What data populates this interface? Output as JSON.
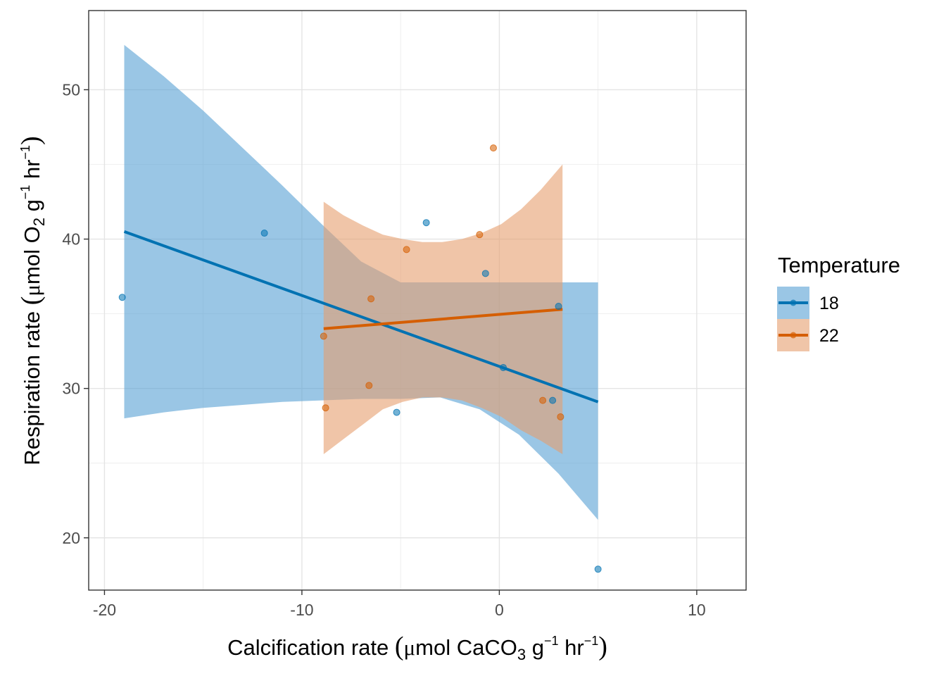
{
  "chart_data": {
    "type": "scatter",
    "xlabel": {
      "pre": "Calcification rate ",
      "paren_open": "(",
      "mu": "μ",
      "main": "mol CaCO",
      "sub": "3",
      "unit1": " g",
      "sup1": "−1",
      "unit2": " hr",
      "sup2": "−1",
      "paren_close": ")"
    },
    "ylabel": {
      "pre": "Respiration rate ",
      "paren_open": "(",
      "mu": "μ",
      "main": "mol O",
      "sub": "2",
      "unit1": " g",
      "sup1": "−1",
      "unit2": " hr",
      "sup2": "−1",
      "paren_close": ")"
    },
    "xlim": [
      -20.8,
      12.5
    ],
    "ylim": [
      16.5,
      55.3
    ],
    "x_ticks": [
      -20,
      -10,
      0,
      10
    ],
    "x_tick_labels": [
      "-20",
      "-10",
      "0",
      "10"
    ],
    "y_ticks": [
      20,
      30,
      40,
      50
    ],
    "y_tick_labels": [
      "20",
      "30",
      "40",
      "50"
    ],
    "x_minor": [
      -15,
      -5,
      5
    ],
    "y_minor": [
      25,
      35,
      45
    ],
    "grid": true,
    "legend": {
      "title": "Temperature",
      "position": "right"
    },
    "series": [
      {
        "name": "18",
        "color": "#0072B2",
        "ribbon_color": "#56A0D3",
        "points": [
          {
            "x": -19.1,
            "y": 36.1
          },
          {
            "x": -11.9,
            "y": 40.4
          },
          {
            "x": -3.7,
            "y": 41.1
          },
          {
            "x": -5.2,
            "y": 28.4
          },
          {
            "x": -0.7,
            "y": 37.7
          },
          {
            "x": 0.2,
            "y": 31.4
          },
          {
            "x": 2.7,
            "y": 29.2
          },
          {
            "x": 3.0,
            "y": 35.5
          },
          {
            "x": 5.0,
            "y": 17.9
          }
        ],
        "line": [
          {
            "x": -19.0,
            "y": 40.5
          },
          {
            "x": 5.0,
            "y": 29.1
          }
        ],
        "ribbon": {
          "x": [
            -19.0,
            -17.0,
            -15.0,
            -13.0,
            -11.0,
            -9.0,
            -7.0,
            -5.0,
            -3.0,
            -1.0,
            1.0,
            3.0,
            5.0
          ],
          "upper": [
            53.0,
            50.9,
            48.6,
            46.1,
            43.6,
            41.0,
            38.5,
            37.1,
            37.1,
            37.1,
            37.1,
            37.1,
            37.1
          ],
          "lower": [
            28.0,
            28.4,
            28.7,
            28.9,
            29.1,
            29.2,
            29.3,
            29.3,
            29.4,
            28.6,
            26.9,
            24.3,
            21.2
          ]
        }
      },
      {
        "name": "22",
        "color": "#D55E00",
        "ribbon_color": "#E69F6E",
        "points": [
          {
            "x": -8.9,
            "y": 33.5
          },
          {
            "x": -8.8,
            "y": 28.7
          },
          {
            "x": -6.6,
            "y": 30.2
          },
          {
            "x": -6.5,
            "y": 36.0
          },
          {
            "x": -4.7,
            "y": 39.3
          },
          {
            "x": -1.0,
            "y": 40.3
          },
          {
            "x": -0.3,
            "y": 46.1
          },
          {
            "x": 2.2,
            "y": 29.2
          },
          {
            "x": 3.1,
            "y": 28.1
          }
        ],
        "line": [
          {
            "x": -8.9,
            "y": 34.0
          },
          {
            "x": 3.2,
            "y": 35.3
          }
        ],
        "ribbon": {
          "x": [
            -8.9,
            -7.9,
            -6.9,
            -5.9,
            -4.9,
            -3.9,
            -2.9,
            -1.9,
            -0.9,
            0.1,
            1.1,
            2.1,
            3.2
          ],
          "upper": [
            42.5,
            41.6,
            40.9,
            40.3,
            40.0,
            39.8,
            39.8,
            40.0,
            40.4,
            41.0,
            42.0,
            43.3,
            45.0
          ],
          "lower": [
            25.6,
            26.6,
            27.6,
            28.6,
            29.1,
            29.4,
            29.4,
            29.2,
            28.7,
            28.1,
            27.2,
            26.5,
            25.6
          ]
        }
      }
    ]
  }
}
